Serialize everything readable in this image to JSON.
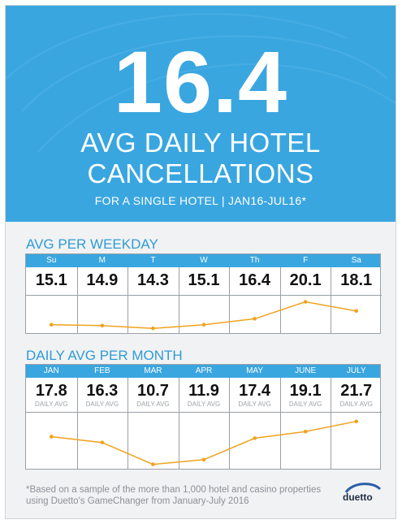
{
  "hero": {
    "big_number": "16.4",
    "title_line1": "AVG DAILY HOTEL",
    "title_line2": "CANCELLATIONS",
    "subtitle": "FOR A SINGLE HOTEL | JAN16-JUL16*"
  },
  "chart_data": [
    {
      "type": "line",
      "title": "AVG PER WEEKDAY",
      "categories": [
        "Su",
        "M",
        "T",
        "W",
        "Th",
        "F",
        "Sa"
      ],
      "values": [
        15.1,
        14.9,
        14.3,
        15.1,
        16.4,
        20.1,
        18.1
      ],
      "value_labels": [
        "15.1",
        "14.9",
        "14.3",
        "15.1",
        "16.4",
        "20.1",
        "18.1"
      ],
      "ylim": [
        13.8,
        20.9
      ],
      "line_color": "#f0a21e"
    },
    {
      "type": "line",
      "title": "DAILY AVG PER MONTH",
      "categories": [
        "JAN",
        "FEB",
        "MAR",
        "APR",
        "MAY",
        "JUNE",
        "JULY"
      ],
      "values": [
        17.8,
        16.3,
        10.7,
        11.9,
        17.4,
        19.1,
        21.7
      ],
      "value_labels": [
        "17.8",
        "16.3",
        "10.7",
        "11.9",
        "17.4",
        "19.1",
        "21.7"
      ],
      "cell_sublabel": "DAILY AVG",
      "ylim": [
        10.2,
        23.3
      ],
      "line_color": "#f0a21e"
    }
  ],
  "footnote_line1": "*Based on a sample of the more than 1,000 hotel and casino properties",
  "footnote_line2": "using Duetto's GameChanger from January-July 2016",
  "logo_text": "duetto",
  "colors": {
    "accent": "#3aa6e0",
    "line": "#f0a21e"
  }
}
